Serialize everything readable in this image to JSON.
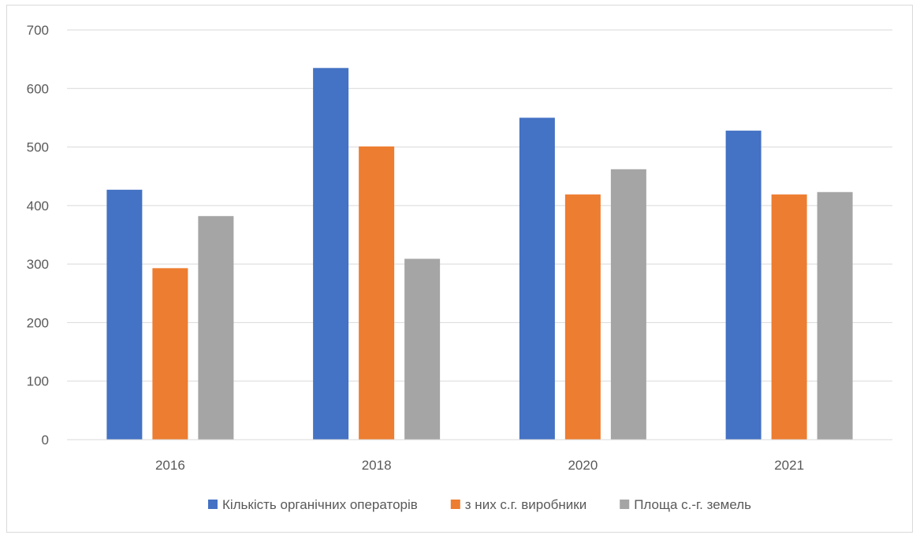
{
  "chart_data": {
    "type": "bar",
    "title": "",
    "xlabel": "",
    "ylabel": "",
    "categories": [
      "2016",
      "2018",
      "2020",
      "2021"
    ],
    "series": [
      {
        "name": "Кількість органічних операторів",
        "color": "#4472c4",
        "values": [
          427,
          635,
          550,
          528
        ]
      },
      {
        "name": "з них с.г. виробники",
        "color": "#ed7d31",
        "values": [
          293,
          501,
          419,
          419
        ]
      },
      {
        "name": "Площа с.-г. земель",
        "color": "#a5a5a5",
        "values": [
          382,
          309,
          462,
          423
        ]
      }
    ],
    "ylim": [
      0,
      700
    ],
    "yticks": [
      "0",
      "100",
      "200",
      "300",
      "400",
      "500",
      "600",
      "700"
    ],
    "grid": true,
    "legend_position": "bottom",
    "gridline_color": "#d9d9d9",
    "axis_line_color": "#d9d9d9",
    "text_color": "#595959"
  }
}
